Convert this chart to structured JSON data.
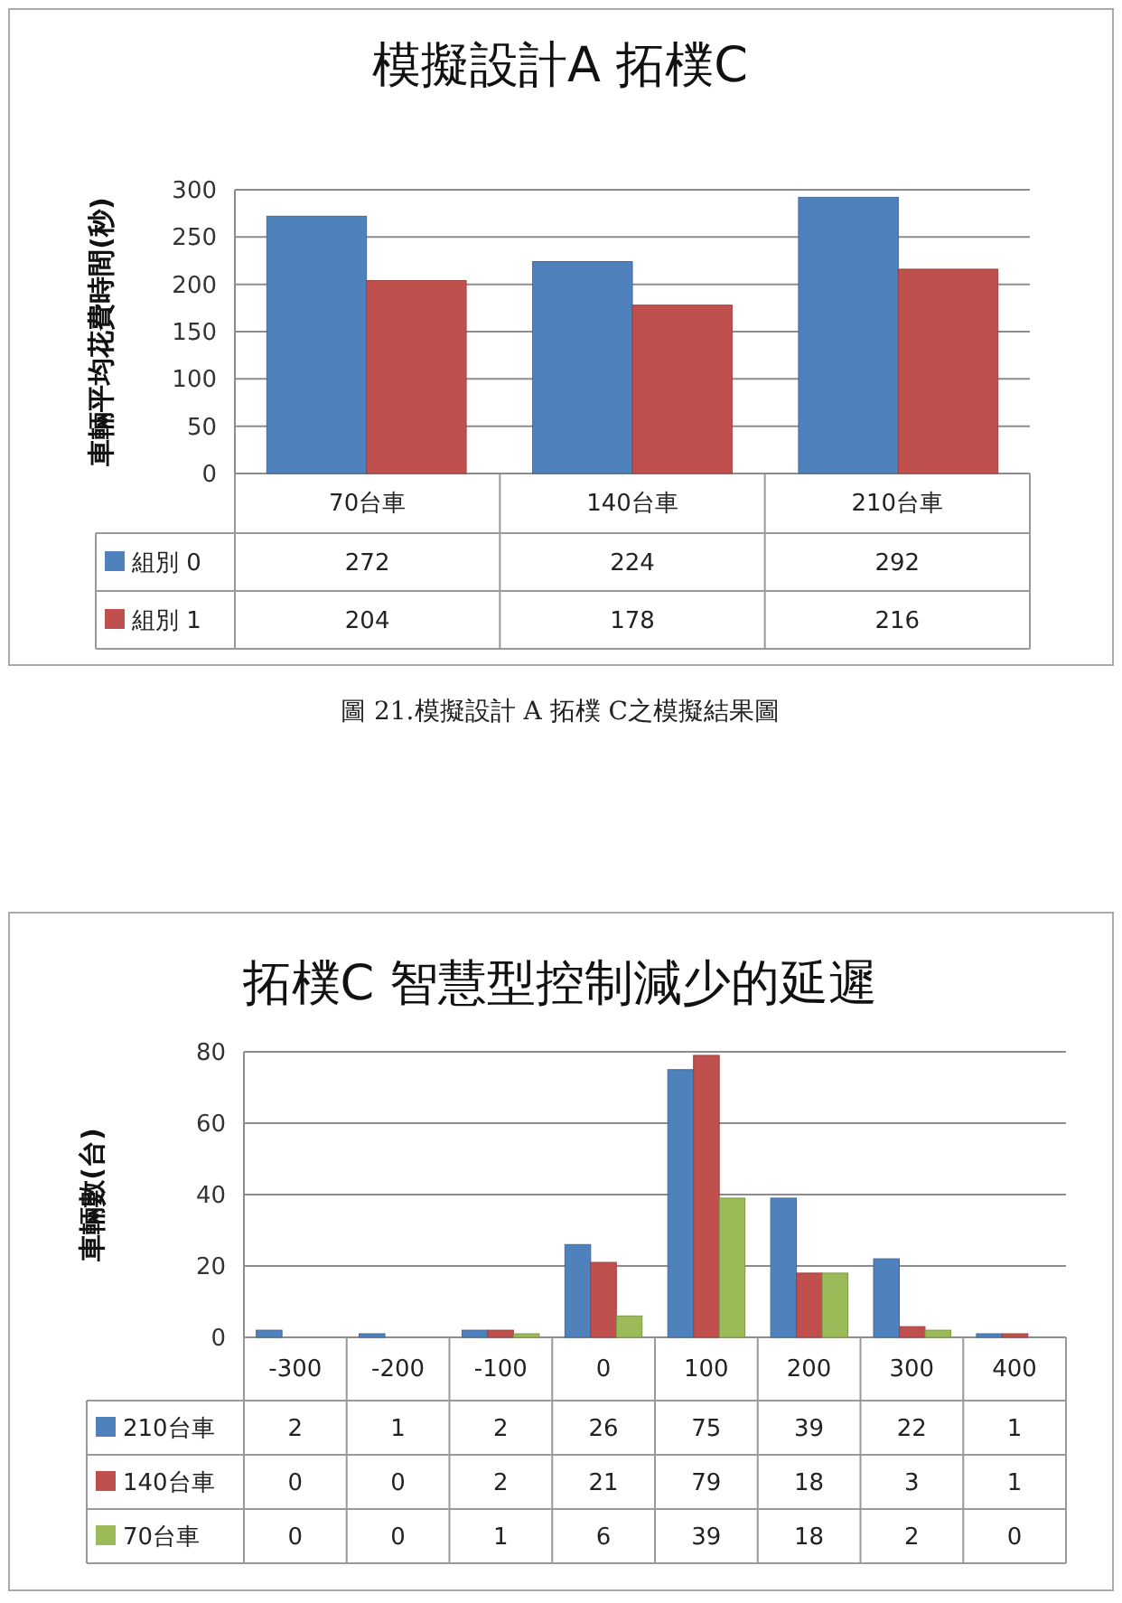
{
  "chart_data": [
    {
      "type": "bar",
      "title": "模擬設計A 拓樸C",
      "ylabel": "車輛平均花費時間(秒)",
      "categories": [
        "70台車",
        "140台車",
        "210台車"
      ],
      "series": [
        {
          "name": "組別 0",
          "color": "#4f81bd",
          "values": [
            272,
            224,
            292
          ]
        },
        {
          "name": "組別 1",
          "color": "#c0504d",
          "values": [
            204,
            178,
            216
          ]
        }
      ],
      "ylim": [
        0,
        300
      ],
      "yticks": [
        0,
        50,
        100,
        150,
        200,
        250,
        300
      ],
      "grid": "y",
      "legend": "bottom",
      "data_labels": true,
      "annotations": [
        "圖 21.模擬設計 A 拓樸 C之模擬結果圖"
      ]
    },
    {
      "type": "bar",
      "title": "拓樸C 智慧型控制減少的延遲",
      "ylabel": "車輛數(台)",
      "categories": [
        "-300",
        "-200",
        "-100",
        "0",
        "100",
        "200",
        "300",
        "400"
      ],
      "series": [
        {
          "name": "210台車",
          "color": "#4f81bd",
          "values": [
            2,
            1,
            2,
            26,
            75,
            39,
            22,
            1
          ]
        },
        {
          "name": "140台車",
          "color": "#c0504d",
          "values": [
            0,
            0,
            2,
            21,
            79,
            18,
            3,
            1
          ]
        },
        {
          "name": "70台車",
          "color": "#9bbb59",
          "values": [
            0,
            0,
            1,
            6,
            39,
            18,
            2,
            0
          ]
        }
      ],
      "ylim": [
        0,
        80
      ],
      "yticks": [
        0,
        20,
        40,
        60,
        80
      ],
      "grid": "y",
      "legend": "bottom",
      "data_labels": true
    }
  ]
}
